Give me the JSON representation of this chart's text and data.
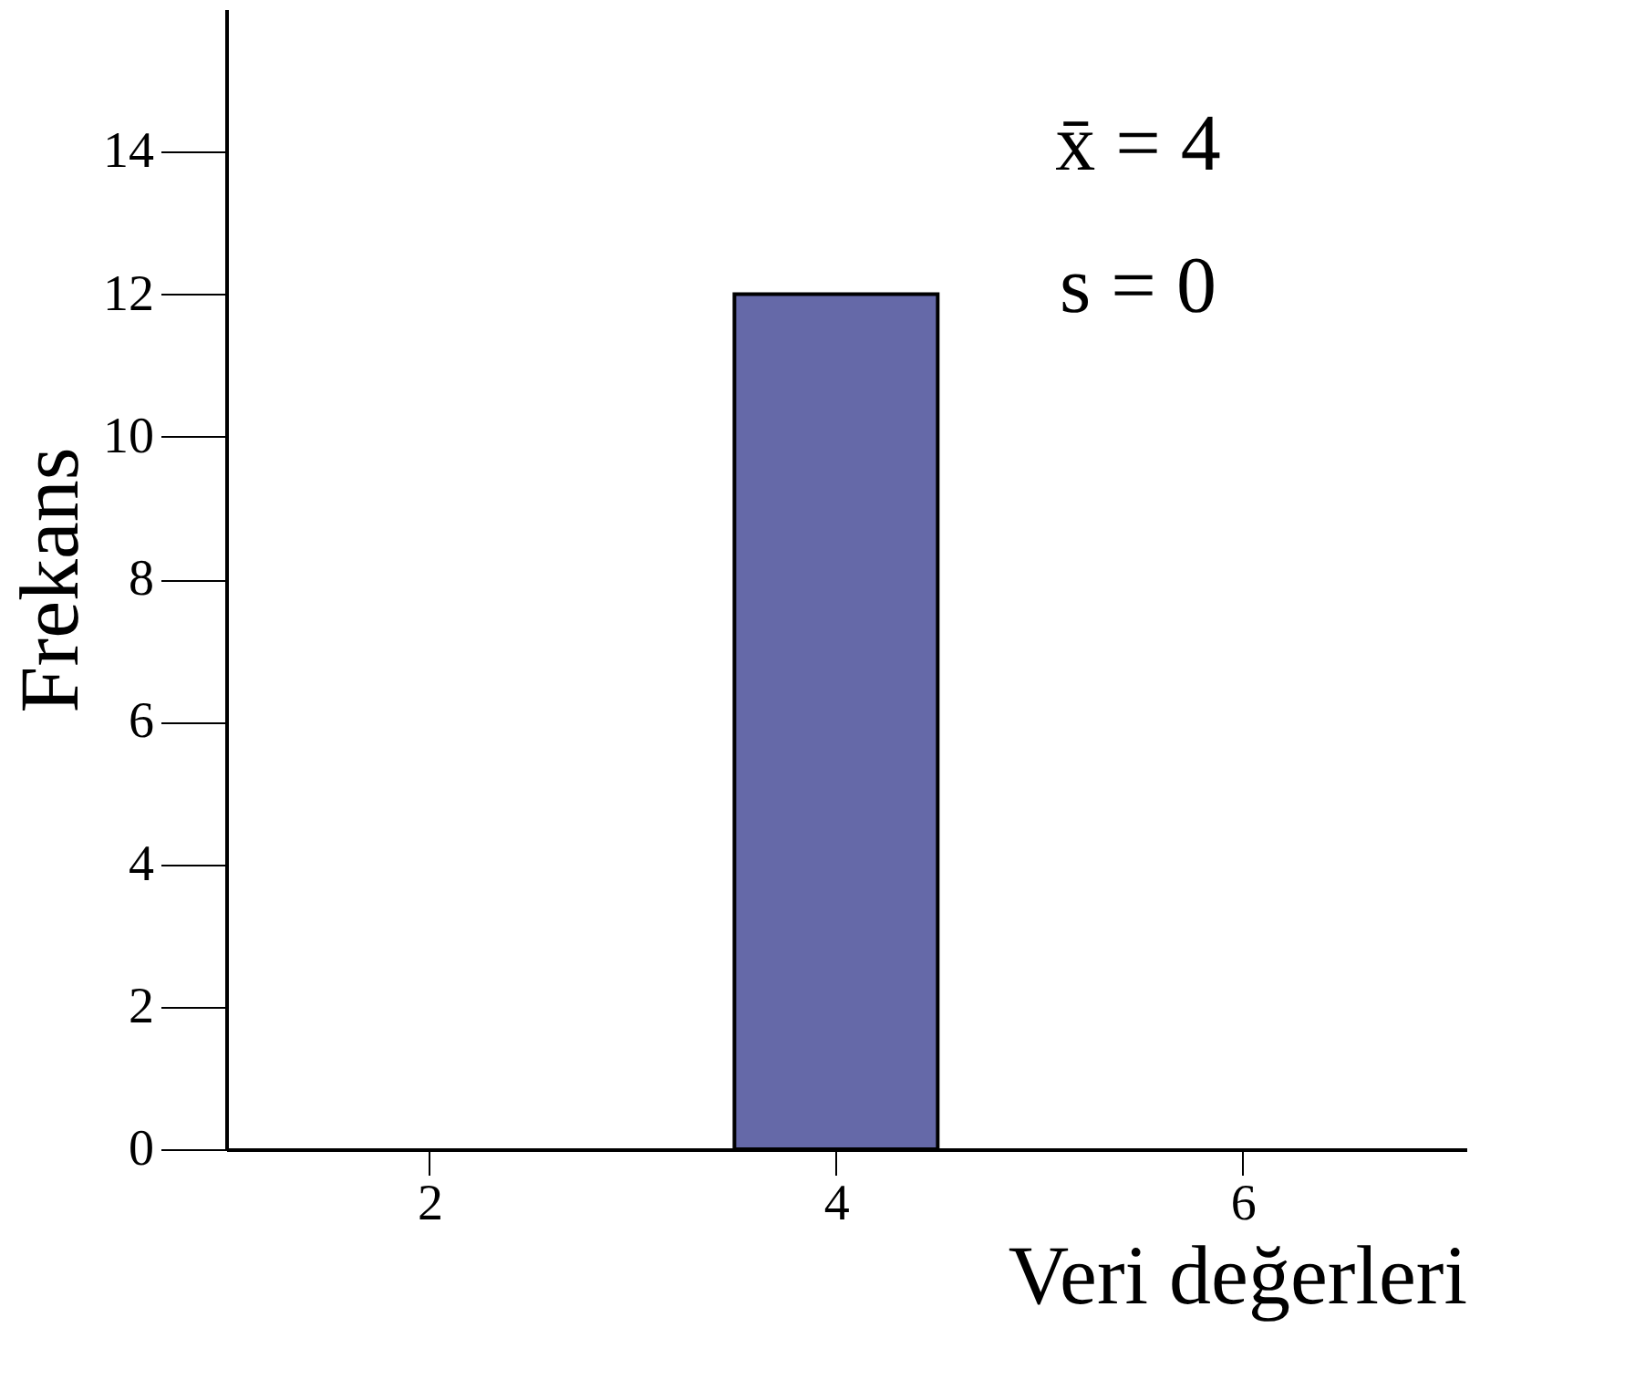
{
  "chart_data": {
    "type": "histogram",
    "xlabel": "Veri değerleri",
    "ylabel": "Frekans",
    "bins": [
      3.5,
      4.5
    ],
    "values": [
      12
    ],
    "color": "#6569a8",
    "xlim": [
      1,
      7.1
    ],
    "xticks": [
      2,
      4,
      6
    ],
    "ylim": [
      0,
      16
    ],
    "yticks": [
      0,
      2,
      4,
      6,
      8,
      10,
      12,
      14
    ],
    "grid": false,
    "annotations": [
      "x̄ = 4",
      "s = 0"
    ]
  }
}
